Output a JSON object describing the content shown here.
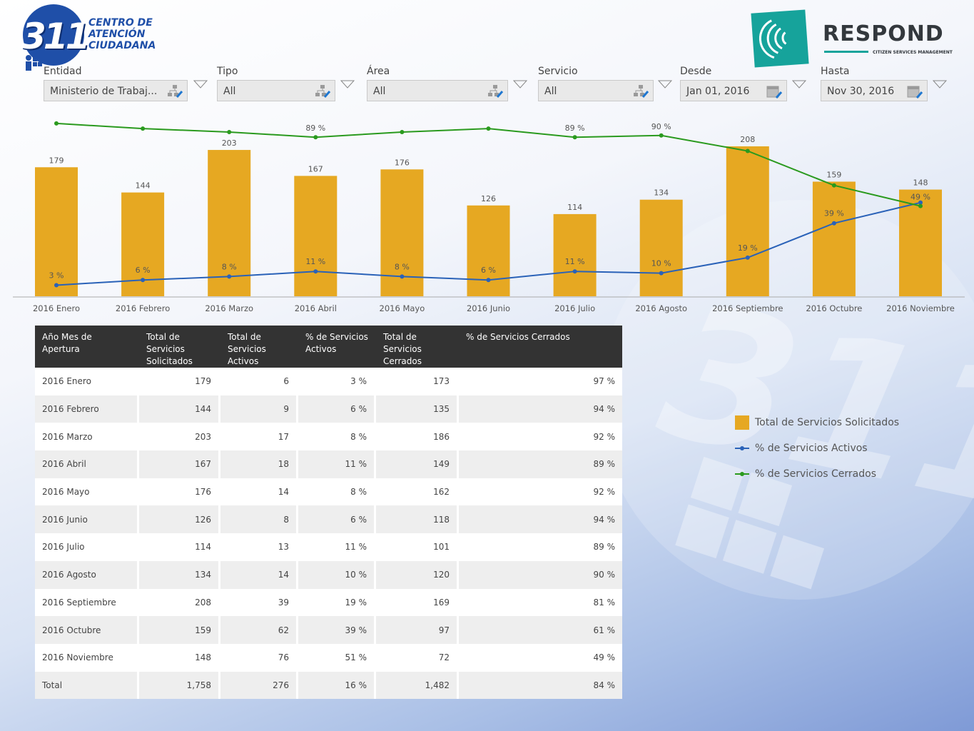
{
  "header": {
    "logo_311": {
      "number": "311",
      "text": "CENTRO DE\nATENCIÓN\nCIUDADANA"
    },
    "logo_respond": {
      "word": "RESPOND",
      "sub": "CITIZEN SERVICES MANAGEMENT"
    }
  },
  "filters": [
    {
      "label": "Entidad",
      "value": "Ministerio de Trabaj...",
      "icon": "hierarchy-icon"
    },
    {
      "label": "Tipo",
      "value": "All",
      "icon": "hierarchy-icon"
    },
    {
      "label": "Área",
      "value": "All",
      "icon": "hierarchy-icon"
    },
    {
      "label": "Servicio",
      "value": "All",
      "icon": "hierarchy-icon"
    },
    {
      "label": "Desde",
      "value": "Jan 01, 2016",
      "icon": "calendar-icon"
    },
    {
      "label": "Hasta",
      "value": "Nov 30, 2016",
      "icon": "calendar-icon"
    }
  ],
  "chart_data": {
    "type": "bar",
    "categories": [
      "2016 Enero",
      "2016 Febrero",
      "2016 Marzo",
      "2016 Abril",
      "2016 Mayo",
      "2016 Junio",
      "2016 Julio",
      "2016 Agosto",
      "2016 Septiembre",
      "2016 Octubre",
      "2016 Noviembre"
    ],
    "series": [
      {
        "name": "Total de Servicios Solicitados",
        "kind": "bar",
        "color": "#e6a822",
        "values": [
          179,
          144,
          203,
          167,
          176,
          126,
          114,
          134,
          208,
          159,
          148
        ]
      },
      {
        "name": "% de Servicios Activos",
        "kind": "line",
        "color": "#2a62b8",
        "values": [
          3,
          6,
          8,
          11,
          8,
          6,
          11,
          10,
          19,
          39,
          51
        ],
        "labels": [
          "3 %",
          "6 %",
          "8 %",
          "11 %",
          "8 %",
          "6 %",
          "11 %",
          "10 %",
          "19 %",
          "39 %",
          ""
        ]
      },
      {
        "name": "% de Servicios Cerrados",
        "kind": "line",
        "color": "#2a9a1e",
        "values": [
          97,
          94,
          92,
          89,
          92,
          94,
          89,
          90,
          81,
          61,
          49
        ],
        "labels": [
          "",
          "",
          "",
          "89 %",
          "",
          "",
          "89 %",
          "90 %",
          "",
          "",
          "49 %"
        ]
      }
    ],
    "legend_position": "right",
    "grid": false
  },
  "table": {
    "headers": [
      "Año Mes de Apertura",
      "Total de Servicios Solicitados",
      "Total de Servicios Activos",
      "% de Servicios Activos",
      "Total de Servicios Cerrados",
      "% de Servicios Cerrados"
    ],
    "rows": [
      [
        "2016 Enero",
        "179",
        "6",
        "3 %",
        "173",
        "97 %"
      ],
      [
        "2016 Febrero",
        "144",
        "9",
        "6 %",
        "135",
        "94 %"
      ],
      [
        "2016 Marzo",
        "203",
        "17",
        "8 %",
        "186",
        "92 %"
      ],
      [
        "2016 Abril",
        "167",
        "18",
        "11 %",
        "149",
        "89 %"
      ],
      [
        "2016 Mayo",
        "176",
        "14",
        "8 %",
        "162",
        "92 %"
      ],
      [
        "2016 Junio",
        "126",
        "8",
        "6 %",
        "118",
        "94 %"
      ],
      [
        "2016 Julio",
        "114",
        "13",
        "11 %",
        "101",
        "89 %"
      ],
      [
        "2016 Agosto",
        "134",
        "14",
        "10 %",
        "120",
        "90 %"
      ],
      [
        "2016 Septiembre",
        "208",
        "39",
        "19 %",
        "169",
        "81 %"
      ],
      [
        "2016 Octubre",
        "159",
        "62",
        "39 %",
        "97",
        "61 %"
      ],
      [
        "2016 Noviembre",
        "148",
        "76",
        "51 %",
        "72",
        "49 %"
      ],
      [
        "Total",
        "1,758",
        "276",
        "16 %",
        "1,482",
        "84 %"
      ]
    ]
  }
}
